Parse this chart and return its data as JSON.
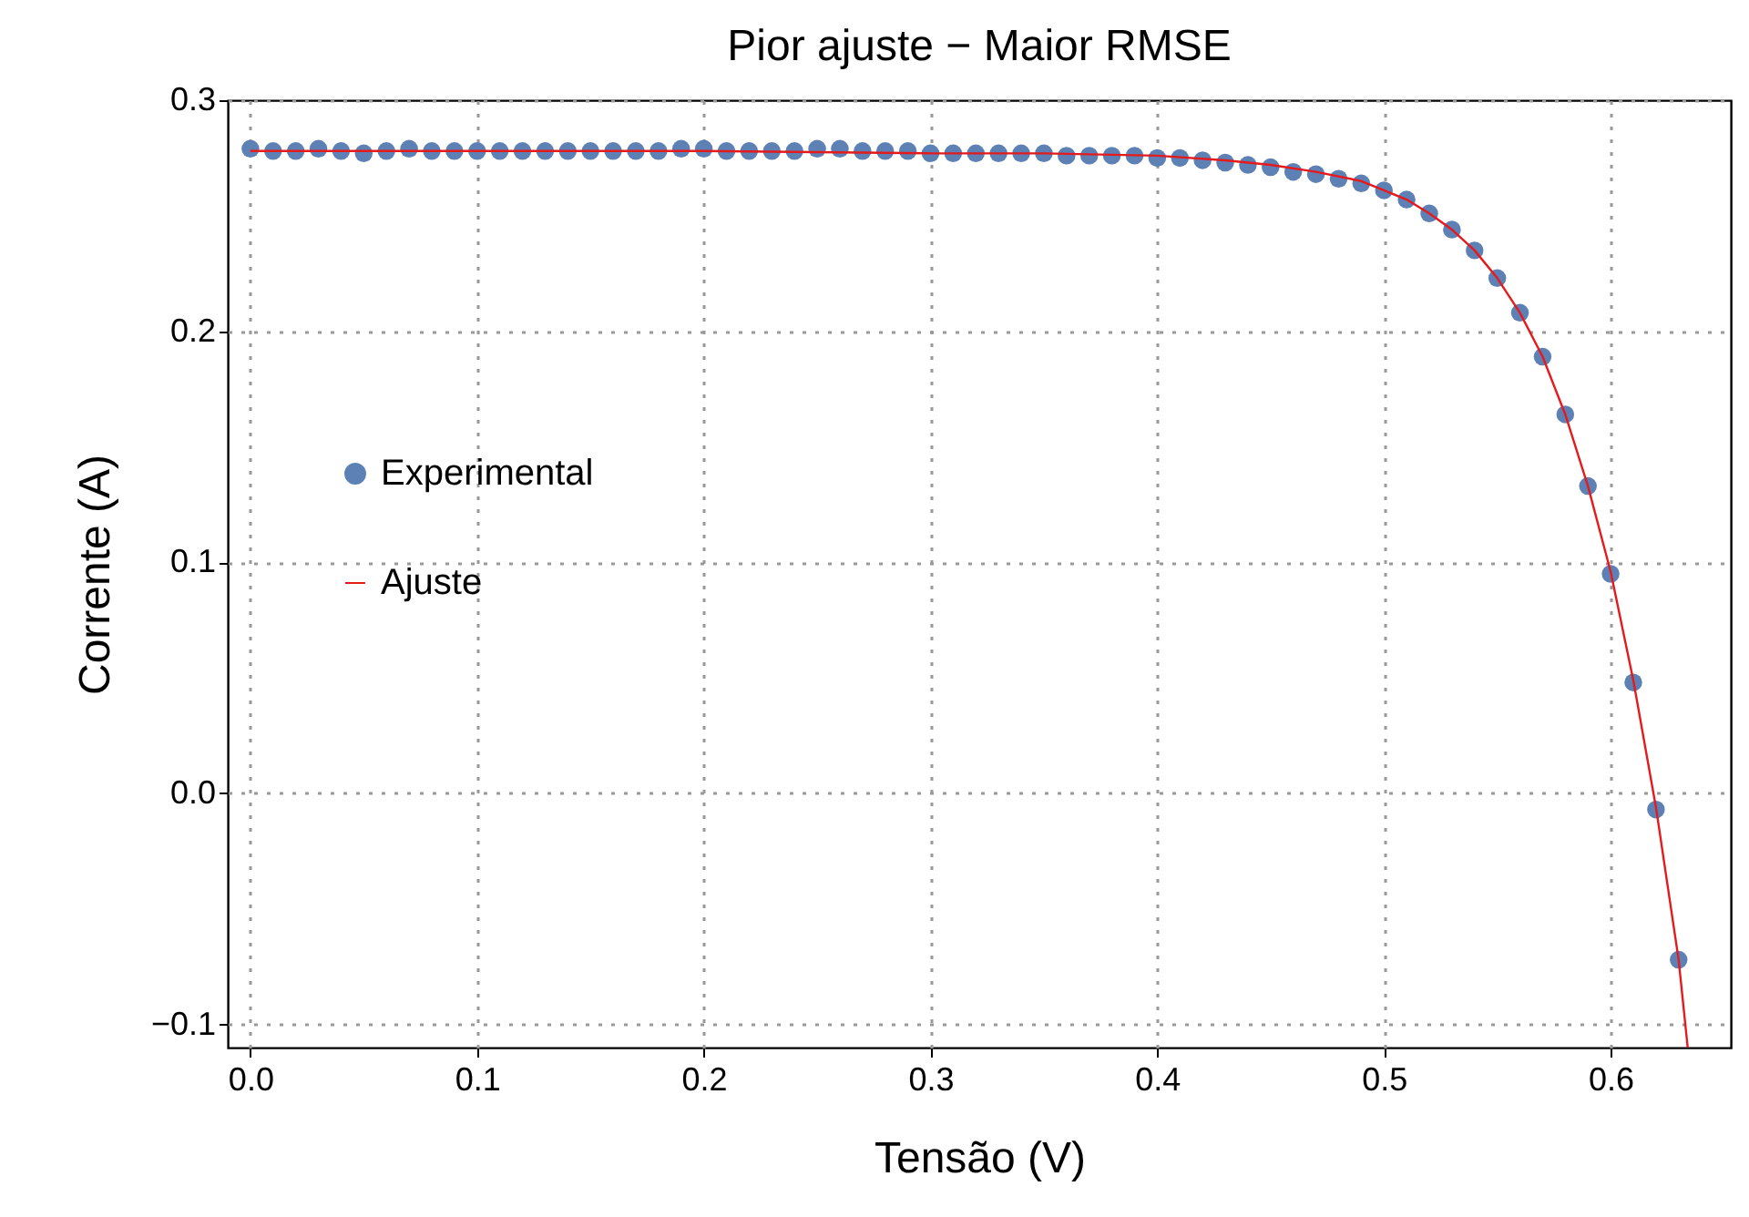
{
  "chart_data": {
    "type": "scatter",
    "title": "Pior ajuste − Maior RMSE",
    "xlabel": "Tensão (V)",
    "ylabel": "Corrente (A)",
    "xlim": [
      -0.01,
      0.653
    ],
    "ylim": [
      -0.11,
      0.3
    ],
    "xticks": [
      {
        "value": 0,
        "label": "0.0"
      },
      0.1,
      0.2,
      0.3,
      0.4,
      0.5,
      0.6
    ],
    "yticks": [
      {
        "value": -0.1,
        "label": "−0.1"
      },
      {
        "value": 0,
        "label": "0.0"
      },
      0.1,
      0.2,
      0.3
    ],
    "grid": true,
    "legend": "left",
    "series": [
      {
        "name": "Experimental",
        "type": "scatter",
        "marker": "circle",
        "color": "#5e81b5",
        "x": [
          0,
          0.01,
          0.02,
          0.03,
          0.04,
          0.05,
          0.06,
          0.07,
          0.08,
          0.09,
          0.1,
          0.11,
          0.12,
          0.13,
          0.14,
          0.15,
          0.16,
          0.17,
          0.18,
          0.19,
          0.2,
          0.21,
          0.22,
          0.23,
          0.24,
          0.25,
          0.26,
          0.27,
          0.28,
          0.29,
          0.3,
          0.31,
          0.32,
          0.33,
          0.34,
          0.35,
          0.36,
          0.37,
          0.38,
          0.39,
          0.4,
          0.41,
          0.42,
          0.43,
          0.44,
          0.45,
          0.46,
          0.47,
          0.48,
          0.49,
          0.5,
          0.51,
          0.52,
          0.53,
          0.54,
          0.55,
          0.56,
          0.57,
          0.58,
          0.59,
          0.6,
          0.61,
          0.62,
          0.63
        ],
        "values": [
          0.279,
          0.278,
          0.278,
          0.279,
          0.278,
          0.277,
          0.278,
          0.279,
          0.278,
          0.278,
          0.278,
          0.278,
          0.278,
          0.278,
          0.278,
          0.278,
          0.278,
          0.278,
          0.278,
          0.279,
          0.279,
          0.278,
          0.278,
          0.278,
          0.278,
          0.279,
          0.279,
          0.278,
          0.278,
          0.278,
          0.277,
          0.277,
          0.277,
          0.277,
          0.277,
          0.277,
          0.276,
          0.276,
          0.276,
          0.276,
          0.275,
          0.275,
          0.274,
          0.273,
          0.272,
          0.271,
          0.269,
          0.268,
          0.266,
          0.264,
          0.261,
          0.257,
          0.251,
          0.244,
          0.235,
          0.223,
          0.208,
          0.189,
          0.164,
          0.133,
          0.095,
          0.048,
          -0.007,
          -0.072
        ]
      },
      {
        "name": "Ajuste",
        "type": "line",
        "line_style": "solid",
        "color": "#e41a1c",
        "x": [
          0,
          0.1,
          0.2,
          0.3,
          0.35,
          0.4,
          0.43,
          0.45,
          0.47,
          0.49,
          0.5,
          0.51,
          0.52,
          0.53,
          0.54,
          0.55,
          0.56,
          0.57,
          0.58,
          0.59,
          0.6,
          0.61,
          0.62,
          0.63,
          0.634
        ],
        "values": [
          0.278,
          0.278,
          0.278,
          0.277,
          0.277,
          0.276,
          0.274,
          0.272,
          0.269,
          0.265,
          0.261,
          0.257,
          0.251,
          0.244,
          0.235,
          0.223,
          0.208,
          0.189,
          0.164,
          0.133,
          0.096,
          0.049,
          -0.006,
          -0.072,
          -0.11
        ]
      }
    ]
  }
}
